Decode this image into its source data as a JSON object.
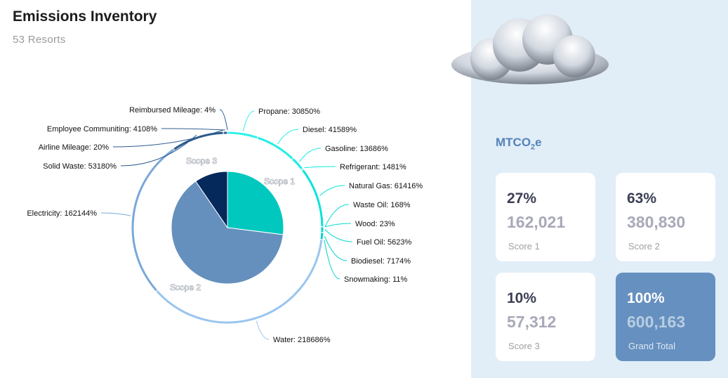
{
  "header": {
    "title": "Emissions Inventory",
    "subtitle": "53 Resorts"
  },
  "summary": {
    "unit_main": "MTCO",
    "unit_sub": "2",
    "unit_suffix": "e",
    "cards": [
      {
        "pct": "27%",
        "value": "162,021",
        "label": "Score 1"
      },
      {
        "pct": "63%",
        "value": "380,830",
        "label": "Score 2"
      },
      {
        "pct": "10%",
        "value": "57,312",
        "label": "Score 3"
      },
      {
        "pct": "100%",
        "value": "600,163",
        "label": "Grand Total"
      }
    ]
  },
  "chart_data": {
    "type": "pie",
    "title": "",
    "inner": [
      {
        "name": "Scope 1",
        "value": 162021,
        "color": "#00c8bf"
      },
      {
        "name": "Scope 2",
        "value": 380830,
        "color": "#6590bd"
      },
      {
        "name": "Scope 3",
        "value": 57312,
        "color": "#04295a"
      }
    ],
    "outer": [
      {
        "label": "Propane: 30850%",
        "value": 30850,
        "color": "#2ff2ea"
      },
      {
        "label": "Diesel: 41589%",
        "value": 41589,
        "color": "#24efe6"
      },
      {
        "label": "Gasoline: 13686%",
        "value": 13686,
        "color": "#18ebe2"
      },
      {
        "label": "Refrigerant: 1481%",
        "value": 1481,
        "color": "#10e8de"
      },
      {
        "label": "Natural Gas: 61416%",
        "value": 61416,
        "color": "#0ae3d9"
      },
      {
        "label": "Waste Oil: 168%",
        "value": 168,
        "color": "#08ddd3"
      },
      {
        "label": "Wood: 23%",
        "value": 23,
        "color": "#06d9cf"
      },
      {
        "label": "Fuel Oil: 5623%",
        "value": 5623,
        "color": "#05d6cc"
      },
      {
        "label": "Biodiesel: 7174%",
        "value": 7174,
        "color": "#04d3c9"
      },
      {
        "label": "Snowmaking: 11%",
        "value": 11,
        "color": "#03d1c7"
      },
      {
        "label": "Water: 218686%",
        "value": 218686,
        "color": "#9ac5ef"
      },
      {
        "label": "Electricity: 162144%",
        "value": 162144,
        "color": "#7aa8d8"
      },
      {
        "label": "Solid Waste: 53180%",
        "value": 53180,
        "color": "#2a5a8e"
      },
      {
        "label": "Airline Mileage: 20%",
        "value": 20,
        "color": "#2a5a8e"
      },
      {
        "label": "Employee Communiting: 4108%",
        "value": 4108,
        "color": "#345f92"
      },
      {
        "label": "Reimbursed Mileage: 4%",
        "value": 4,
        "color": "#2a5a8e"
      }
    ]
  }
}
